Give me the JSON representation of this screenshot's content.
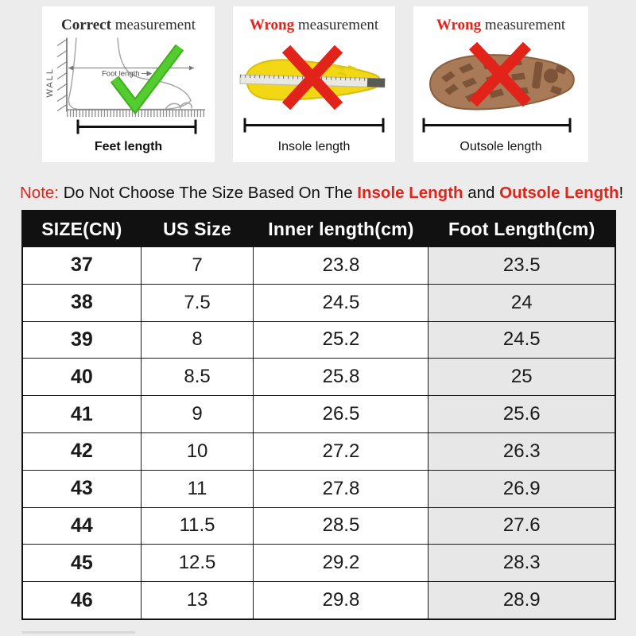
{
  "colors": {
    "page_bg": "#ececec",
    "card_bg": "#ffffff",
    "red": "#e2231a",
    "green": "#52cc2f",
    "green_dark": "#3fae1c",
    "yellow": "#f2d714",
    "brown": "#a87a58",
    "brown_dark": "#7d5437",
    "header_bg": "#111111",
    "header_text": "#ffffff",
    "shade": "#e7e7e7"
  },
  "panels": {
    "correct": {
      "title_prefix": "Correct",
      "title_suffix": " measurement",
      "wall_label": "WALL",
      "measure_label": "Foot length",
      "bottom_label": "Feet length"
    },
    "insole": {
      "title_prefix": "Wrong",
      "title_suffix": " measurement",
      "bottom_label": "Insole length"
    },
    "outsole": {
      "title_prefix": "Wrong",
      "title_suffix": " measurement",
      "bottom_label": "Outsole length"
    }
  },
  "note": {
    "label": "Note:",
    "text1": " Do Not Choose The Size Based On The ",
    "highlight1": "Insole Length",
    "text2": " and ",
    "highlight2": "Outsole Length",
    "suffix": "!"
  },
  "size_table": {
    "headers": [
      "SIZE(CN)",
      "US Size",
      "Inner length(cm)",
      "Foot Length(cm)"
    ],
    "rows": [
      [
        "37",
        "7",
        "23.8",
        "23.5"
      ],
      [
        "38",
        "7.5",
        "24.5",
        "24"
      ],
      [
        "39",
        "8",
        "25.2",
        "24.5"
      ],
      [
        "40",
        "8.5",
        "25.8",
        "25"
      ],
      [
        "41",
        "9",
        "26.5",
        "25.6"
      ],
      [
        "42",
        "10",
        "27.2",
        "26.3"
      ],
      [
        "43",
        "11",
        "27.8",
        "26.9"
      ],
      [
        "44",
        "11.5",
        "28.5",
        "27.6"
      ],
      [
        "45",
        "12.5",
        "29.2",
        "28.3"
      ],
      [
        "46",
        "13",
        "29.8",
        "28.9"
      ]
    ]
  }
}
